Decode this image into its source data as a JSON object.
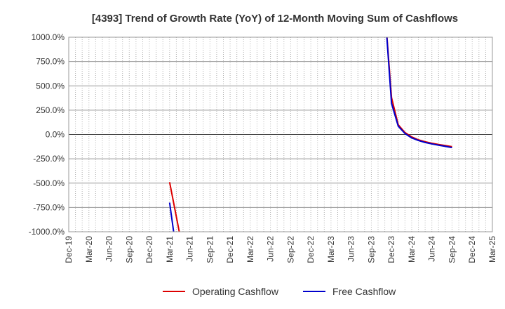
{
  "chart_data": {
    "type": "line",
    "title": "[4393]  Trend of Growth Rate (YoY) of 12-Month Moving Sum of Cashflows",
    "xlabel": "",
    "ylabel": "",
    "ylim": [
      -1000,
      1000
    ],
    "xlim": [
      "2019-12",
      "2025-03"
    ],
    "y_ticks": [
      {
        "value": 1000,
        "label": "1000.0%"
      },
      {
        "value": 750,
        "label": "750.0%"
      },
      {
        "value": 500,
        "label": "500.0%"
      },
      {
        "value": 250,
        "label": "250.0%"
      },
      {
        "value": 0,
        "label": "0.0%"
      },
      {
        "value": -250,
        "label": "-250.0%"
      },
      {
        "value": -500,
        "label": "-500.0%"
      },
      {
        "value": -750,
        "label": "-750.0%"
      },
      {
        "value": -1000,
        "label": "-1000.0%"
      }
    ],
    "x_ticks": [
      {
        "value": "2019-12",
        "label": "Dec-19"
      },
      {
        "value": "2020-03",
        "label": "Mar-20"
      },
      {
        "value": "2020-06",
        "label": "Jun-20"
      },
      {
        "value": "2020-09",
        "label": "Sep-20"
      },
      {
        "value": "2020-12",
        "label": "Dec-20"
      },
      {
        "value": "2021-03",
        "label": "Mar-21"
      },
      {
        "value": "2021-06",
        "label": "Jun-21"
      },
      {
        "value": "2021-09",
        "label": "Sep-21"
      },
      {
        "value": "2021-12",
        "label": "Dec-21"
      },
      {
        "value": "2022-03",
        "label": "Mar-22"
      },
      {
        "value": "2022-06",
        "label": "Jun-22"
      },
      {
        "value": "2022-09",
        "label": "Sep-22"
      },
      {
        "value": "2022-12",
        "label": "Dec-22"
      },
      {
        "value": "2023-03",
        "label": "Mar-23"
      },
      {
        "value": "2023-06",
        "label": "Jun-23"
      },
      {
        "value": "2023-09",
        "label": "Sep-23"
      },
      {
        "value": "2023-12",
        "label": "Dec-23"
      },
      {
        "value": "2024-03",
        "label": "Mar-24"
      },
      {
        "value": "2024-06",
        "label": "Jun-24"
      },
      {
        "value": "2024-09",
        "label": "Sep-24"
      },
      {
        "value": "2024-12",
        "label": "Dec-24"
      },
      {
        "value": "2025-03",
        "label": "Mar-25"
      }
    ],
    "grid": true,
    "legend_position": "bottom",
    "series": [
      {
        "name": "Operating Cashflow",
        "color": "#dd0000",
        "segments": [
          [
            {
              "x": "2021-03",
              "y": -490
            },
            {
              "x": "2021-05",
              "y": -1200
            }
          ],
          [
            {
              "x": "2023-11",
              "y": 1300
            },
            {
              "x": "2023-12",
              "y": 380
            },
            {
              "x": "2024-01",
              "y": 100
            },
            {
              "x": "2024-02",
              "y": 20
            },
            {
              "x": "2024-03",
              "y": -25
            },
            {
              "x": "2024-04",
              "y": -55
            },
            {
              "x": "2024-05",
              "y": -75
            },
            {
              "x": "2024-06",
              "y": -90
            },
            {
              "x": "2024-07",
              "y": -103
            },
            {
              "x": "2024-08",
              "y": -114
            },
            {
              "x": "2024-09",
              "y": -125
            }
          ]
        ]
      },
      {
        "name": "Free Cashflow",
        "color": "#0000cc",
        "segments": [
          [
            {
              "x": "2021-03",
              "y": -700
            },
            {
              "x": "2021-04",
              "y": -1200
            }
          ],
          [
            {
              "x": "2023-11",
              "y": 1300
            },
            {
              "x": "2023-12",
              "y": 320
            },
            {
              "x": "2024-01",
              "y": 85
            },
            {
              "x": "2024-02",
              "y": 10
            },
            {
              "x": "2024-03",
              "y": -35
            },
            {
              "x": "2024-04",
              "y": -62
            },
            {
              "x": "2024-05",
              "y": -82
            },
            {
              "x": "2024-06",
              "y": -97
            },
            {
              "x": "2024-07",
              "y": -110
            },
            {
              "x": "2024-08",
              "y": -122
            },
            {
              "x": "2024-09",
              "y": -135
            }
          ]
        ]
      }
    ]
  }
}
